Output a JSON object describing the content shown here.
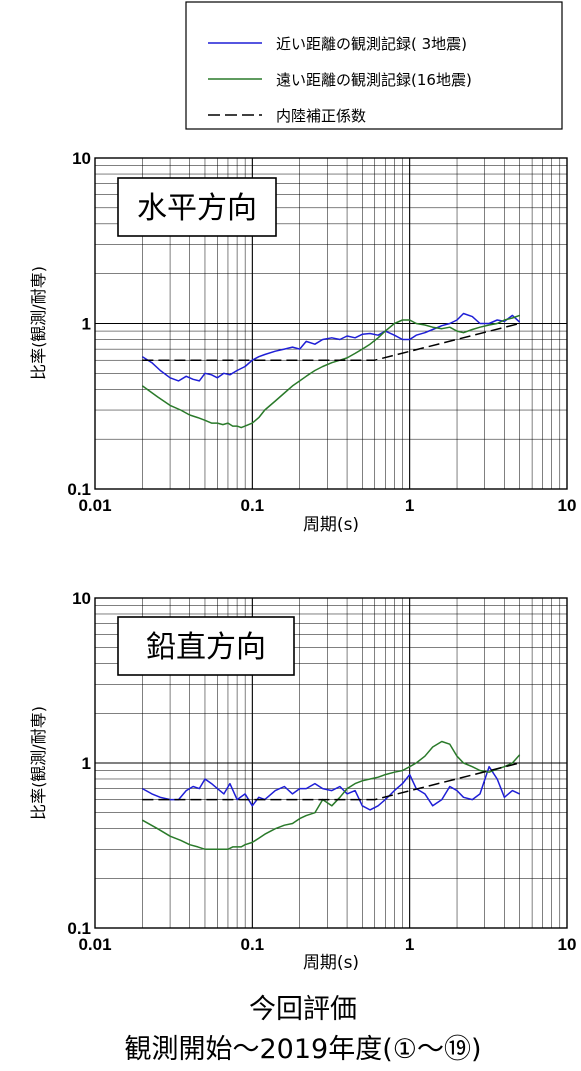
{
  "legend": {
    "items": [
      {
        "label": "近い距離の観測記録( 3地震)",
        "color": "#1f1fd6",
        "style": "solid"
      },
      {
        "label": "遠い距離の観測記録(16地震)",
        "color": "#2a7a2a",
        "style": "solid"
      },
      {
        "label": "内陸補正係数",
        "color": "#000000",
        "style": "dashed"
      }
    ]
  },
  "footer": {
    "line1": "今回評価",
    "line2": "観測開始～2019年度(①～⑲)"
  },
  "chart_data": [
    {
      "type": "line",
      "box_label": "水平方向",
      "xlabel": "周期(s)",
      "ylabel": "比率(観測/耐専)",
      "xscale": "log",
      "yscale": "log",
      "xlim": [
        0.01,
        10
      ],
      "ylim": [
        0.1,
        10
      ],
      "xticks": [
        "0.01",
        "0.1",
        "1",
        "10"
      ],
      "yticks": [
        "0.1",
        "1",
        "10"
      ],
      "grid": true,
      "series": [
        {
          "name": "近い距離の観測記録( 3地震)",
          "color": "#1f1fd6",
          "x": [
            0.02,
            0.023,
            0.026,
            0.03,
            0.034,
            0.038,
            0.042,
            0.046,
            0.05,
            0.055,
            0.06,
            0.066,
            0.072,
            0.08,
            0.09,
            0.1,
            0.11,
            0.12,
            0.14,
            0.16,
            0.18,
            0.2,
            0.22,
            0.25,
            0.28,
            0.32,
            0.36,
            0.4,
            0.45,
            0.5,
            0.56,
            0.63,
            0.7,
            0.8,
            0.9,
            1.0,
            1.1,
            1.25,
            1.4,
            1.6,
            1.8,
            2.0,
            2.2,
            2.5,
            2.8,
            3.2,
            3.6,
            4.0,
            4.5,
            5.0
          ],
          "y": [
            0.63,
            0.58,
            0.52,
            0.47,
            0.45,
            0.48,
            0.46,
            0.45,
            0.5,
            0.49,
            0.47,
            0.5,
            0.49,
            0.52,
            0.55,
            0.6,
            0.63,
            0.65,
            0.68,
            0.7,
            0.72,
            0.7,
            0.78,
            0.75,
            0.8,
            0.82,
            0.8,
            0.84,
            0.82,
            0.86,
            0.87,
            0.85,
            0.9,
            0.85,
            0.8,
            0.8,
            0.85,
            0.88,
            0.92,
            0.97,
            1.0,
            1.05,
            1.15,
            1.1,
            1.0,
            1.0,
            1.05,
            1.03,
            1.12,
            1.02
          ]
        },
        {
          "name": "遠い距離の観測記録(16地震)",
          "color": "#2a7a2a",
          "x": [
            0.02,
            0.025,
            0.03,
            0.035,
            0.04,
            0.045,
            0.05,
            0.055,
            0.06,
            0.065,
            0.07,
            0.075,
            0.08,
            0.085,
            0.09,
            0.1,
            0.11,
            0.12,
            0.14,
            0.16,
            0.18,
            0.2,
            0.22,
            0.25,
            0.28,
            0.32,
            0.36,
            0.4,
            0.45,
            0.5,
            0.56,
            0.63,
            0.7,
            0.8,
            0.9,
            1.0,
            1.1,
            1.25,
            1.4,
            1.6,
            1.8,
            2.0,
            2.2,
            2.5,
            2.8,
            3.2,
            3.6,
            4.0,
            4.5,
            5.0
          ],
          "y": [
            0.42,
            0.36,
            0.32,
            0.3,
            0.28,
            0.27,
            0.26,
            0.25,
            0.25,
            0.245,
            0.25,
            0.24,
            0.24,
            0.235,
            0.24,
            0.25,
            0.27,
            0.3,
            0.34,
            0.38,
            0.42,
            0.45,
            0.48,
            0.52,
            0.55,
            0.58,
            0.6,
            0.62,
            0.66,
            0.7,
            0.75,
            0.82,
            0.9,
            1.0,
            1.05,
            1.05,
            1.0,
            0.98,
            0.95,
            0.93,
            0.95,
            0.9,
            0.88,
            0.92,
            0.95,
            0.98,
            1.0,
            1.05,
            1.08,
            1.12
          ]
        },
        {
          "name": "内陸補正係数",
          "color": "#000000",
          "dashed": true,
          "x": [
            0.02,
            0.6,
            5.0
          ],
          "y": [
            0.6,
            0.6,
            1.0
          ]
        }
      ]
    },
    {
      "type": "line",
      "box_label": "鉛直方向",
      "xlabel": "周期(s)",
      "ylabel": "比率(観測/耐専)",
      "xscale": "log",
      "yscale": "log",
      "xlim": [
        0.01,
        10
      ],
      "ylim": [
        0.1,
        10
      ],
      "xticks": [
        "0.01",
        "0.1",
        "1",
        "10"
      ],
      "yticks": [
        "0.1",
        "1",
        "10"
      ],
      "grid": true,
      "series": [
        {
          "name": "近い距離の観測記録( 3地震)",
          "color": "#1f1fd6",
          "x": [
            0.02,
            0.023,
            0.026,
            0.03,
            0.034,
            0.038,
            0.042,
            0.046,
            0.05,
            0.055,
            0.06,
            0.066,
            0.072,
            0.08,
            0.09,
            0.1,
            0.11,
            0.12,
            0.14,
            0.16,
            0.18,
            0.2,
            0.22,
            0.25,
            0.28,
            0.32,
            0.36,
            0.4,
            0.45,
            0.5,
            0.56,
            0.63,
            0.7,
            0.8,
            0.9,
            1.0,
            1.1,
            1.25,
            1.4,
            1.6,
            1.8,
            2.0,
            2.2,
            2.5,
            2.8,
            3.2,
            3.6,
            4.0,
            4.5,
            5.0
          ],
          "y": [
            0.7,
            0.65,
            0.62,
            0.6,
            0.6,
            0.68,
            0.72,
            0.7,
            0.8,
            0.75,
            0.7,
            0.65,
            0.75,
            0.6,
            0.65,
            0.55,
            0.62,
            0.6,
            0.68,
            0.72,
            0.65,
            0.7,
            0.7,
            0.75,
            0.7,
            0.68,
            0.72,
            0.65,
            0.68,
            0.55,
            0.52,
            0.55,
            0.6,
            0.68,
            0.75,
            0.85,
            0.7,
            0.65,
            0.55,
            0.6,
            0.72,
            0.68,
            0.62,
            0.6,
            0.65,
            0.95,
            0.8,
            0.62,
            0.68,
            0.65
          ]
        },
        {
          "name": "遠い距離の観測記録(16地震)",
          "color": "#2a7a2a",
          "x": [
            0.02,
            0.025,
            0.03,
            0.035,
            0.04,
            0.045,
            0.05,
            0.055,
            0.06,
            0.065,
            0.07,
            0.075,
            0.08,
            0.085,
            0.09,
            0.1,
            0.11,
            0.12,
            0.14,
            0.16,
            0.18,
            0.2,
            0.22,
            0.25,
            0.28,
            0.32,
            0.36,
            0.4,
            0.45,
            0.5,
            0.56,
            0.63,
            0.7,
            0.8,
            0.9,
            1.0,
            1.1,
            1.25,
            1.4,
            1.6,
            1.8,
            2.0,
            2.2,
            2.5,
            2.8,
            3.2,
            3.6,
            4.0,
            4.5,
            5.0
          ],
          "y": [
            0.45,
            0.4,
            0.36,
            0.34,
            0.32,
            0.31,
            0.3,
            0.3,
            0.3,
            0.3,
            0.3,
            0.31,
            0.31,
            0.31,
            0.32,
            0.33,
            0.35,
            0.37,
            0.4,
            0.42,
            0.43,
            0.46,
            0.48,
            0.5,
            0.6,
            0.55,
            0.62,
            0.7,
            0.75,
            0.78,
            0.8,
            0.82,
            0.85,
            0.88,
            0.9,
            0.95,
            1.0,
            1.1,
            1.25,
            1.35,
            1.3,
            1.1,
            1.0,
            0.95,
            0.9,
            0.88,
            0.92,
            0.95,
            1.0,
            1.12
          ]
        },
        {
          "name": "内陸補正係数",
          "color": "#000000",
          "dashed": true,
          "x": [
            0.02,
            0.6,
            5.0
          ],
          "y": [
            0.6,
            0.6,
            1.0
          ]
        }
      ]
    }
  ]
}
